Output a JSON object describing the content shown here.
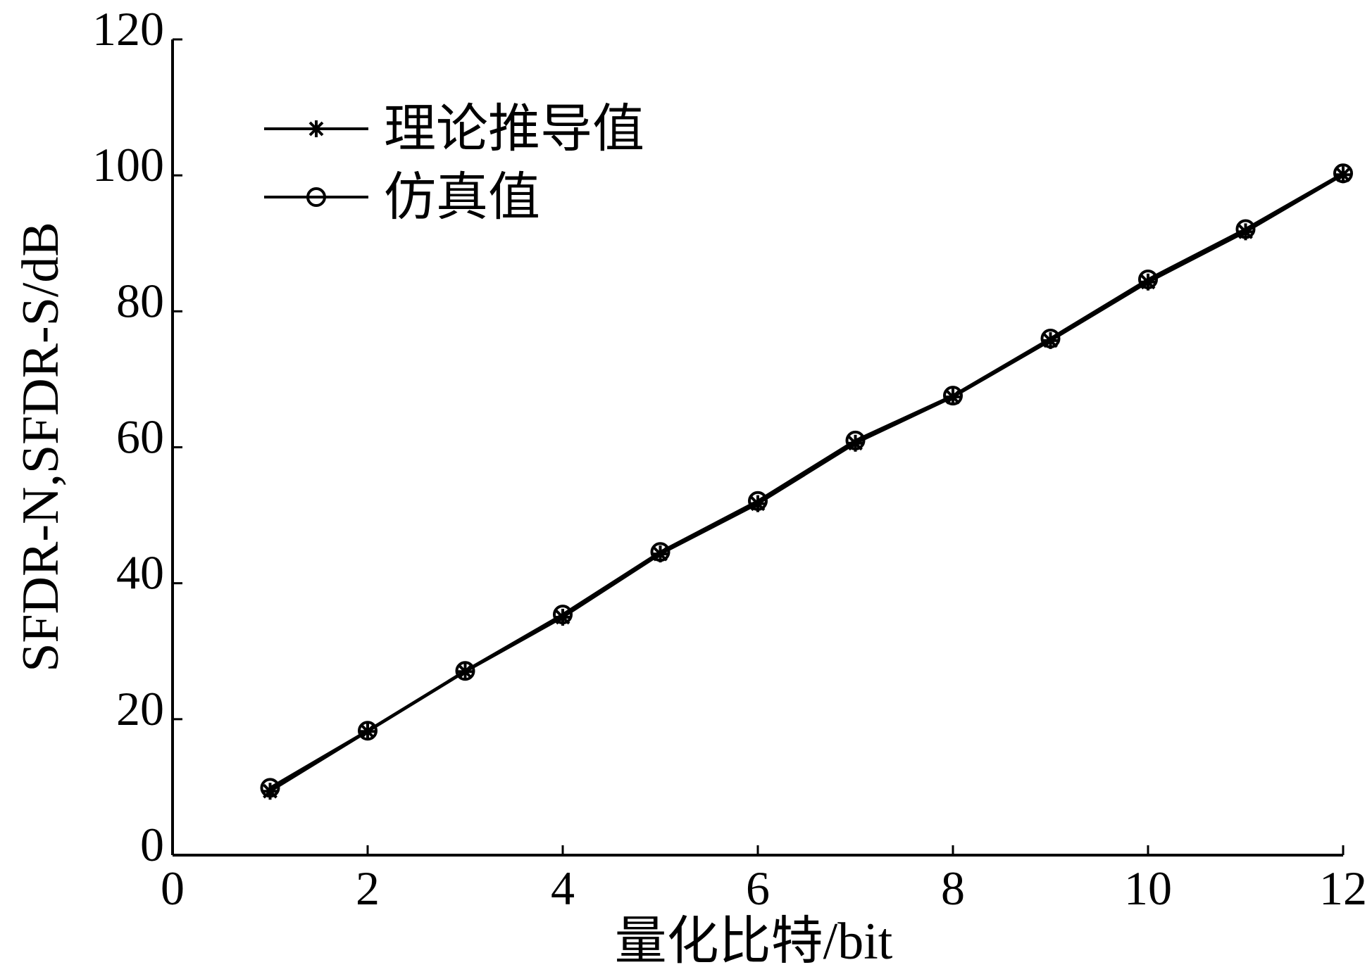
{
  "chart_data": {
    "type": "line",
    "xlabel": "量化比特/bit",
    "ylabel": "SFDR-N,SFDR-S/dB",
    "x": [
      1,
      2,
      3,
      4,
      5,
      6,
      7,
      8,
      9,
      10,
      11,
      12
    ],
    "series": [
      {
        "name": "理论推导值",
        "color": "#000000",
        "marker": "star",
        "values": [
          9.4,
          18.2,
          27.0,
          35.0,
          44.3,
          51.7,
          60.6,
          67.4,
          75.7,
          84.3,
          91.7,
          100.1
        ]
      },
      {
        "name": "仿真值",
        "color": "#000000",
        "marker": "circle",
        "values": [
          9.9,
          18.3,
          27.1,
          35.4,
          44.6,
          52.1,
          61.0,
          67.6,
          76.0,
          84.7,
          92.1,
          100.3
        ]
      }
    ],
    "xlim": [
      0,
      12
    ],
    "xticks": [
      0,
      2,
      4,
      6,
      8,
      10,
      12
    ],
    "ylim": [
      0,
      120
    ],
    "yticks": [
      0,
      20,
      40,
      60,
      80,
      100,
      120
    ],
    "grid": false,
    "legend": "upper left"
  }
}
